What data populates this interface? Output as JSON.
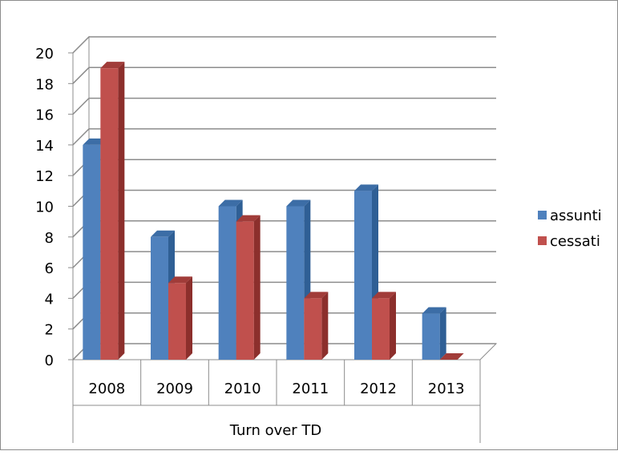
{
  "chart_data": {
    "type": "bar",
    "categories": [
      "2008",
      "2009",
      "2010",
      "2011",
      "2012",
      "2013"
    ],
    "category_group_label": "Turn over TD",
    "series": [
      {
        "name": "assunti",
        "values": [
          14,
          8,
          10,
          10,
          11,
          3
        ],
        "color": "#4f81bd",
        "side_color": "#2f5f95",
        "top_color": "#3c6da6"
      },
      {
        "name": "cessati",
        "values": [
          19,
          5,
          9,
          4,
          4,
          0
        ],
        "color": "#c0504d",
        "side_color": "#8c2f2c",
        "top_color": "#a13c39"
      }
    ],
    "ylim": [
      0,
      20
    ],
    "yticks": [
      0,
      2,
      4,
      6,
      8,
      10,
      12,
      14,
      16,
      18,
      20
    ],
    "grid": true,
    "style": "3d-clustered-column",
    "legend": "right"
  }
}
